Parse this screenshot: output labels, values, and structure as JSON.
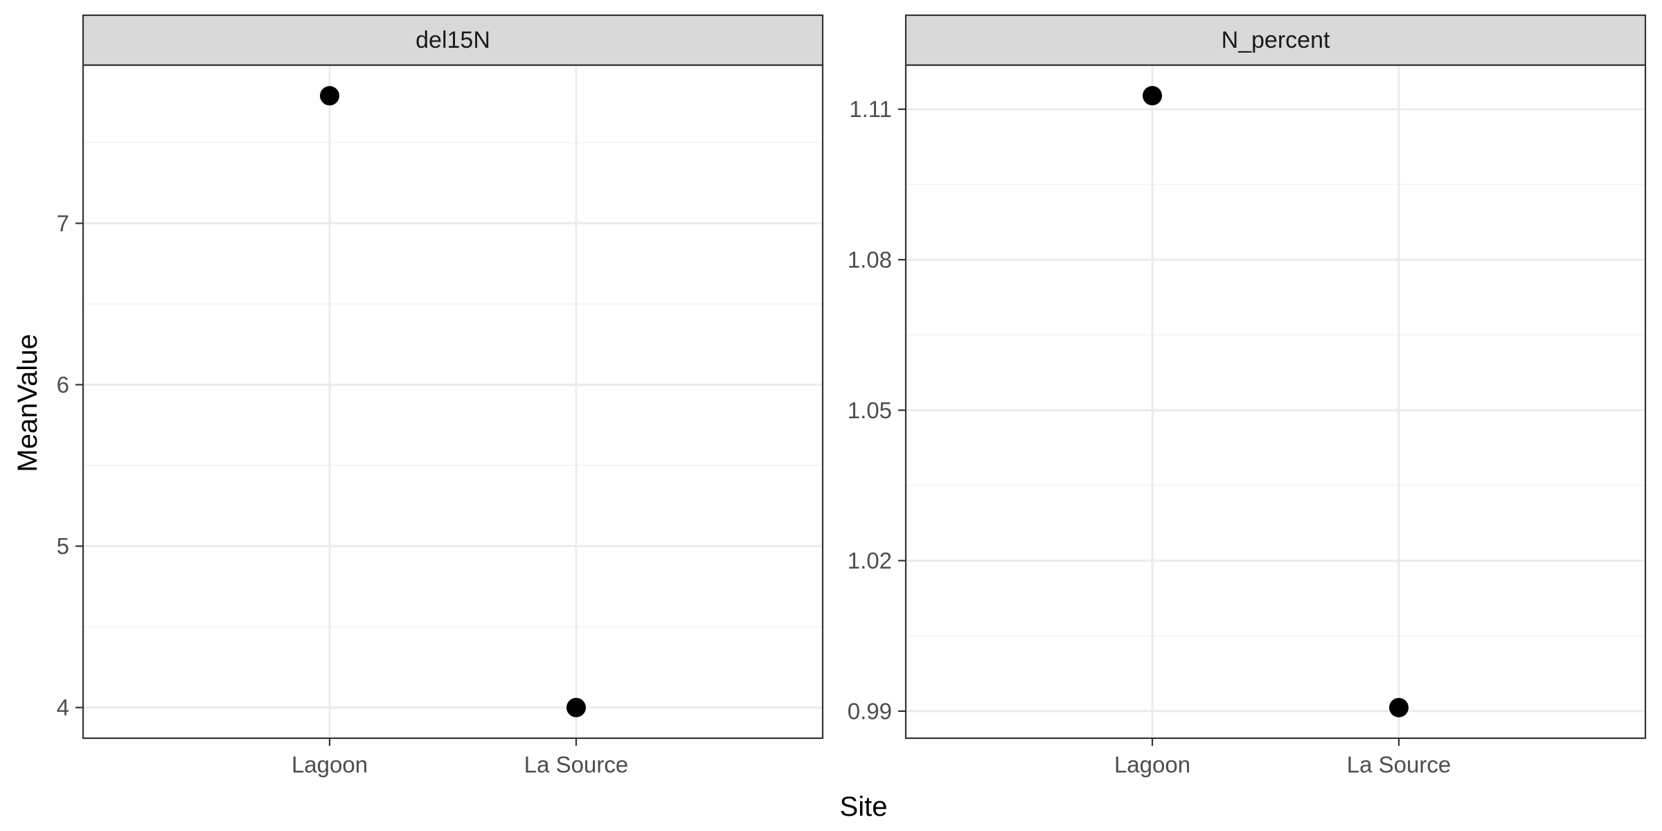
{
  "chart_data": {
    "type": "scatter",
    "xlabel": "Site",
    "ylabel": "MeanValue",
    "grid": true,
    "legend": "none",
    "colors": {
      "point": "#000000",
      "panel_border": "#333333",
      "strip_fill": "#d9d9d9",
      "grid_major": "#ebebeb",
      "grid_minor": "#f3f3f3"
    },
    "panels": [
      {
        "strip": "del15N",
        "categories": [
          "Lagoon",
          "La Source"
        ],
        "values": [
          7.79,
          4.0
        ],
        "ylim": [
          3.81,
          7.98
        ],
        "yticks": [
          4,
          5,
          6,
          7
        ],
        "ytick_labels": [
          "4",
          "5",
          "6",
          "7"
        ]
      },
      {
        "strip": "N_percent",
        "categories": [
          "Lagoon",
          "La Source"
        ],
        "values": [
          1.1127,
          0.9907
        ],
        "ylim": [
          0.9846,
          1.1188
        ],
        "yticks": [
          0.99,
          1.02,
          1.05,
          1.08,
          1.11
        ],
        "ytick_labels": [
          "0.99",
          "1.02",
          "1.05",
          "1.08",
          "1.11"
        ]
      }
    ]
  }
}
